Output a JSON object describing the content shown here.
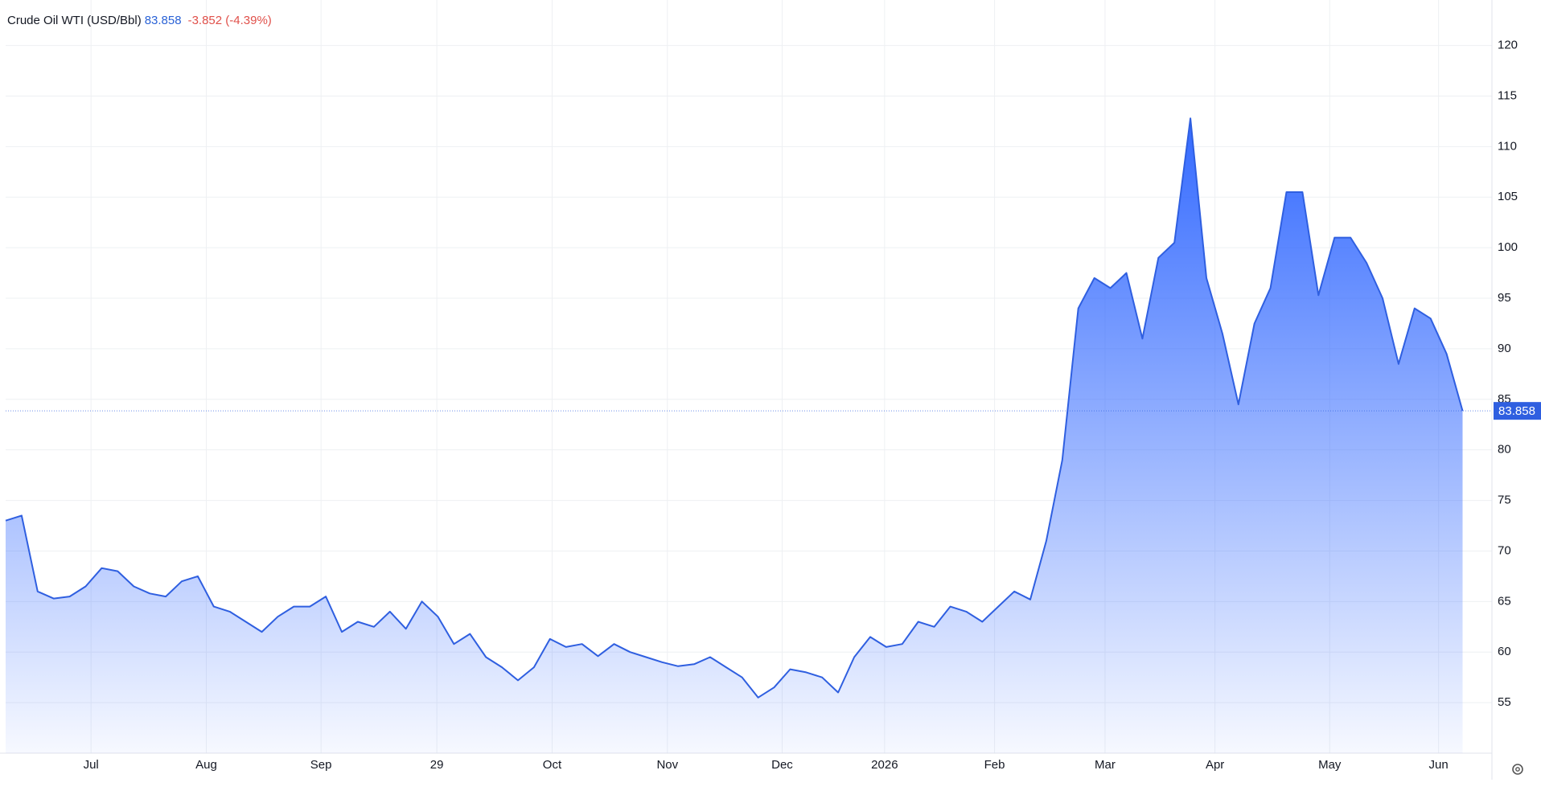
{
  "chart_data": {
    "type": "area",
    "title": "Crude Oil WTI (USD/Bbl)",
    "change": "-3.852 (-4.39%)",
    "color": "#2f5fe0",
    "x": [
      0,
      3,
      6,
      9,
      12,
      15,
      18,
      21,
      24,
      27,
      30,
      33,
      36,
      39,
      42,
      45,
      48,
      51,
      54,
      57,
      60,
      63,
      66,
      69,
      72,
      75,
      78,
      81,
      84,
      87,
      90,
      93,
      96,
      99,
      102,
      105,
      108,
      111,
      114,
      117,
      120,
      123,
      126,
      129,
      132,
      135,
      138,
      141,
      144,
      147,
      150,
      153,
      156,
      159,
      162,
      165,
      168,
      171,
      174,
      177,
      180,
      183,
      186,
      189,
      192,
      195,
      198,
      201,
      204,
      207,
      210,
      213,
      216,
      219,
      222,
      225,
      228,
      231,
      234,
      237,
      240,
      243,
      246,
      249,
      252,
      255,
      258,
      261,
      264,
      267,
      270,
      273
    ],
    "values": [
      73,
      73.5,
      66,
      65.3,
      65.5,
      66.5,
      68.3,
      68,
      66.5,
      65.8,
      65.5,
      67,
      67.5,
      64.5,
      64,
      63,
      62,
      63.5,
      64.5,
      64.5,
      65.5,
      62,
      63,
      62.5,
      64,
      62.3,
      65,
      63.5,
      60.8,
      61.8,
      59.5,
      58.5,
      57.2,
      58.5,
      61.3,
      60.5,
      60.8,
      59.6,
      60.8,
      60,
      59.5,
      59,
      58.6,
      58.8,
      59.5,
      58.5,
      57.5,
      55.5,
      56.5,
      58.3,
      58,
      57.5,
      56,
      59.5,
      61.5,
      60.5,
      60.8,
      63,
      62.5,
      64.5,
      64,
      63,
      64.5,
      66,
      65.2,
      71,
      79,
      94,
      97,
      96,
      97.5,
      91,
      99,
      100.5,
      112.8,
      97,
      91.5,
      84.5,
      92.5,
      96,
      105.5,
      105.5,
      95.3,
      101,
      101,
      98.5,
      95,
      88.5,
      94,
      93,
      89.5,
      83.858
    ],
    "xlim": [
      0,
      278.5
    ],
    "ylim": [
      50,
      124.5
    ],
    "xticks": [
      {
        "value": 16,
        "label": "Jul"
      },
      {
        "value": 37.6,
        "label": "Aug"
      },
      {
        "value": 59.1,
        "label": "Sep"
      },
      {
        "value": 80.8,
        "label": "29"
      },
      {
        "value": 102.4,
        "label": "Oct"
      },
      {
        "value": 124,
        "label": "Nov"
      },
      {
        "value": 145.5,
        "label": "Dec"
      },
      {
        "value": 164.7,
        "label": "2026"
      },
      {
        "value": 185.3,
        "label": "Feb"
      },
      {
        "value": 206,
        "label": "Mar"
      },
      {
        "value": 226.6,
        "label": "Apr"
      },
      {
        "value": 248.1,
        "label": "May"
      },
      {
        "value": 268.5,
        "label": "Jun"
      }
    ],
    "yticks": [
      55,
      60,
      65,
      70,
      75,
      80,
      85,
      90,
      95,
      100,
      105,
      110,
      115,
      120
    ],
    "grid": true
  }
}
